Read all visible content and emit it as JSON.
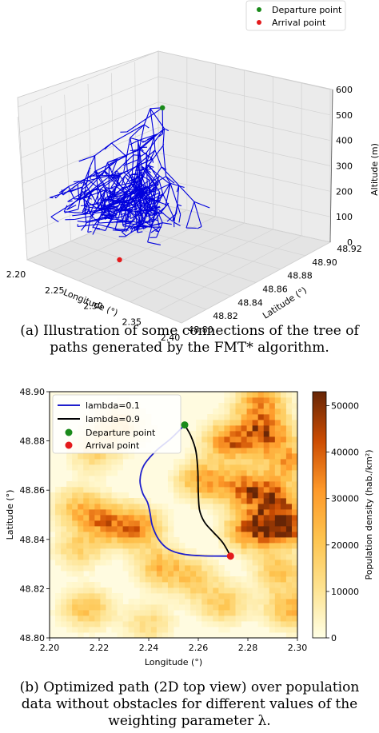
{
  "chart_data": [
    {
      "type": "scatter",
      "panel": "a",
      "projection": "3d",
      "xlabel": "Longitude (°)",
      "ylabel": "Latitude (°)",
      "zlabel": "Altitude (m)",
      "x_ticks": [
        "2.20",
        "2.25",
        "2.30",
        "2.35",
        "2.40"
      ],
      "y_ticks": [
        "48.80",
        "48.82",
        "48.84",
        "48.86",
        "48.88",
        "48.90",
        "48.92"
      ],
      "z_ticks": [
        "0",
        "100",
        "200",
        "300",
        "400",
        "500",
        "600"
      ],
      "xlim": [
        2.2,
        2.4
      ],
      "ylim": [
        48.8,
        48.92
      ],
      "zlim": [
        0,
        600
      ],
      "grid": true,
      "legend_position": "top-right",
      "series": [
        {
          "name": "Departure point",
          "color": "#1a8a1a",
          "points": [
            {
              "x": 2.255,
              "y": 48.885,
              "z": 510
            }
          ]
        },
        {
          "name": "Arrival point",
          "color": "#e41a1c",
          "points": [
            {
              "x": 2.273,
              "y": 48.833,
              "z": 30
            }
          ]
        }
      ],
      "tree_color": "#0000dd"
    },
    {
      "type": "heatmap",
      "panel": "b",
      "xlabel": "Longitude (°)",
      "ylabel": "Latitude (°)",
      "x_ticks": [
        "2.20",
        "2.22",
        "2.24",
        "2.26",
        "2.28",
        "2.30"
      ],
      "y_ticks": [
        "48.80",
        "48.82",
        "48.84",
        "48.86",
        "48.88",
        "48.90"
      ],
      "xlim": [
        2.2,
        2.3
      ],
      "ylim": [
        48.8,
        48.9
      ],
      "colorbar_label": "Population density (hab./km²)",
      "colorbar_ticks": [
        "0",
        "10000",
        "20000",
        "30000",
        "40000",
        "50000"
      ],
      "colorbar_range": [
        0,
        53000
      ],
      "colormap": "YlOrBr",
      "legend_position": "top-left",
      "paths": [
        {
          "name": "lambda=0.1",
          "color": "#1f1fcc",
          "points": [
            [
              2.2545,
              48.8865
            ],
            [
              2.249,
              48.881
            ],
            [
              2.243,
              48.876
            ],
            [
              2.238,
              48.87
            ],
            [
              2.2365,
              48.864
            ],
            [
              2.2375,
              48.859
            ],
            [
              2.2395,
              48.855
            ],
            [
              2.2405,
              48.851
            ],
            [
              2.2415,
              48.8455
            ],
            [
              2.244,
              48.84
            ],
            [
              2.248,
              48.836
            ],
            [
              2.254,
              48.834
            ],
            [
              2.262,
              48.8333
            ],
            [
              2.273,
              48.8332
            ]
          ]
        },
        {
          "name": "lambda=0.9",
          "color": "#000000",
          "points": [
            [
              2.2545,
              48.8865
            ],
            [
              2.257,
              48.882
            ],
            [
              2.259,
              48.876
            ],
            [
              2.2598,
              48.868
            ],
            [
              2.26,
              48.859
            ],
            [
              2.2605,
              48.852
            ],
            [
              2.2625,
              48.847
            ],
            [
              2.266,
              48.843
            ],
            [
              2.27,
              48.8385
            ],
            [
              2.273,
              48.8332
            ]
          ]
        }
      ],
      "markers": [
        {
          "name": "Departure point",
          "color": "#1a8a1a",
          "x": 2.2545,
          "y": 48.8865
        },
        {
          "name": "Arrival point",
          "color": "#e41a1c",
          "x": 2.273,
          "y": 48.8332
        }
      ],
      "hotspots": [
        {
          "x": 2.285,
          "y": 48.895,
          "value": 32000
        },
        {
          "x": 2.273,
          "y": 48.88,
          "value": 38000
        },
        {
          "x": 2.287,
          "y": 48.883,
          "value": 42000
        },
        {
          "x": 2.296,
          "y": 48.872,
          "value": 28000
        },
        {
          "x": 2.262,
          "y": 48.864,
          "value": 30000
        },
        {
          "x": 2.278,
          "y": 48.861,
          "value": 36000
        },
        {
          "x": 2.29,
          "y": 48.857,
          "value": 40000
        },
        {
          "x": 2.282,
          "y": 48.844,
          "value": 47000
        },
        {
          "x": 2.296,
          "y": 48.846,
          "value": 52000
        },
        {
          "x": 2.235,
          "y": 48.845,
          "value": 36000
        },
        {
          "x": 2.222,
          "y": 48.847,
          "value": 30000
        },
        {
          "x": 2.212,
          "y": 48.853,
          "value": 22000
        },
        {
          "x": 2.212,
          "y": 48.836,
          "value": 16000
        },
        {
          "x": 2.245,
          "y": 48.829,
          "value": 25000
        },
        {
          "x": 2.228,
          "y": 48.886,
          "value": 20000
        },
        {
          "x": 2.218,
          "y": 48.875,
          "value": 16000
        },
        {
          "x": 2.258,
          "y": 48.824,
          "value": 18000
        },
        {
          "x": 2.293,
          "y": 48.827,
          "value": 22000
        },
        {
          "x": 2.27,
          "y": 48.814,
          "value": 20000
        },
        {
          "x": 2.215,
          "y": 48.812,
          "value": 22000
        },
        {
          "x": 2.24,
          "y": 48.806,
          "value": 14000
        },
        {
          "x": 2.297,
          "y": 48.812,
          "value": 26000
        }
      ]
    }
  ],
  "captions": {
    "a": [
      "(a) Illustration of some connections of the tree of",
      "paths generated by the FMT* algorithm."
    ],
    "b": [
      "(b) Optimized path (2D top view) over population",
      "data without obstacles for different values of the",
      "weighting parameter λ."
    ]
  }
}
